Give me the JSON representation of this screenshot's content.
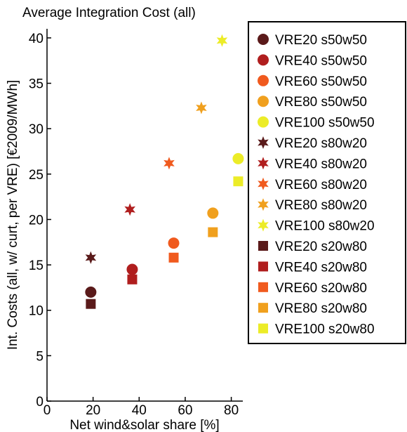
{
  "chart_data": {
    "type": "scatter",
    "title": "Average Integration Cost (all)",
    "xlabel": "Net wind&solar share [%]",
    "ylabel": "Int. Costs (all, w/ curt, per VRE) [€2009/MWh]",
    "xlim": [
      0,
      85
    ],
    "ylim": [
      0,
      41
    ],
    "xticks": [
      0,
      20,
      40,
      60,
      80
    ],
    "yticks": [
      0,
      5,
      10,
      15,
      20,
      25,
      30,
      35,
      40
    ],
    "grid": false,
    "legend_position": "right",
    "series": [
      {
        "name": "VRE20   s50w50",
        "marker": "circle",
        "color": "#5a1a1a",
        "x": [
          19
        ],
        "y": [
          12.0
        ]
      },
      {
        "name": "VRE40   s50w50",
        "marker": "circle",
        "color": "#b01e1e",
        "x": [
          37
        ],
        "y": [
          14.5
        ]
      },
      {
        "name": "VRE60   s50w50",
        "marker": "circle",
        "color": "#f05a1e",
        "x": [
          55
        ],
        "y": [
          17.4
        ]
      },
      {
        "name": "VRE80   s50w50",
        "marker": "circle",
        "color": "#f0a01e",
        "x": [
          72
        ],
        "y": [
          20.7
        ]
      },
      {
        "name": "VRE100 s50w50",
        "marker": "circle",
        "color": "#ecec28",
        "x": [
          83
        ],
        "y": [
          26.7
        ]
      },
      {
        "name": "VRE20   s80w20",
        "marker": "star",
        "color": "#5a1a1a",
        "x": [
          19
        ],
        "y": [
          15.8
        ]
      },
      {
        "name": "VRE40   s80w20",
        "marker": "star",
        "color": "#b01e1e",
        "x": [
          36
        ],
        "y": [
          21.1
        ]
      },
      {
        "name": "VRE60   s80w20",
        "marker": "star",
        "color": "#f05a1e",
        "x": [
          53
        ],
        "y": [
          26.2
        ]
      },
      {
        "name": "VRE80   s80w20",
        "marker": "star",
        "color": "#f0a01e",
        "x": [
          67
        ],
        "y": [
          32.3
        ]
      },
      {
        "name": "VRE100 s80w20",
        "marker": "star",
        "color": "#ecec28",
        "x": [
          76
        ],
        "y": [
          39.7
        ]
      },
      {
        "name": "VRE20   s20w80",
        "marker": "square",
        "color": "#5a1a1a",
        "x": [
          19
        ],
        "y": [
          10.7
        ]
      },
      {
        "name": "VRE40   s20w80",
        "marker": "square",
        "color": "#b01e1e",
        "x": [
          37
        ],
        "y": [
          13.4
        ]
      },
      {
        "name": "VRE60   s20w80",
        "marker": "square",
        "color": "#f05a1e",
        "x": [
          55
        ],
        "y": [
          15.8
        ]
      },
      {
        "name": "VRE80   s20w80",
        "marker": "square",
        "color": "#f0a01e",
        "x": [
          72
        ],
        "y": [
          18.6
        ]
      },
      {
        "name": "VRE100 s20w80",
        "marker": "square",
        "color": "#ecec28",
        "x": [
          83
        ],
        "y": [
          24.2
        ]
      }
    ]
  }
}
